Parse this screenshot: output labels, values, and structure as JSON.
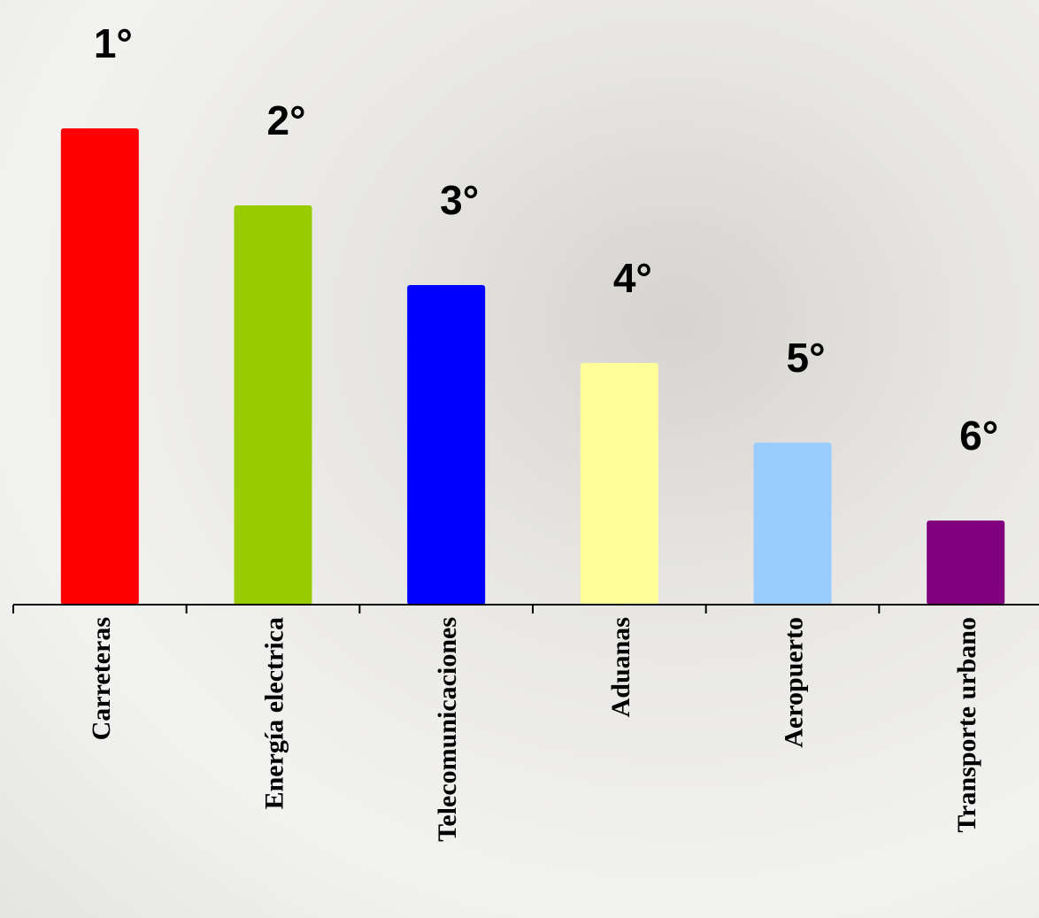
{
  "chart_data": {
    "type": "bar",
    "categories": [
      "Carreteras",
      "Energía electrica",
      "Telecomunicaciones",
      "Aduanas",
      "Aeropuerto",
      "Transporte urbano"
    ],
    "values": [
      538,
      451,
      361,
      273,
      183,
      95
    ],
    "rank_labels": [
      "1°",
      "2°",
      "3°",
      "4°",
      "5°",
      "6°"
    ],
    "colors": [
      "#ff0000",
      "#99cc00",
      "#0000ff",
      "#ffff99",
      "#99ccff",
      "#800080"
    ],
    "ylim": [
      0,
      683
    ]
  }
}
